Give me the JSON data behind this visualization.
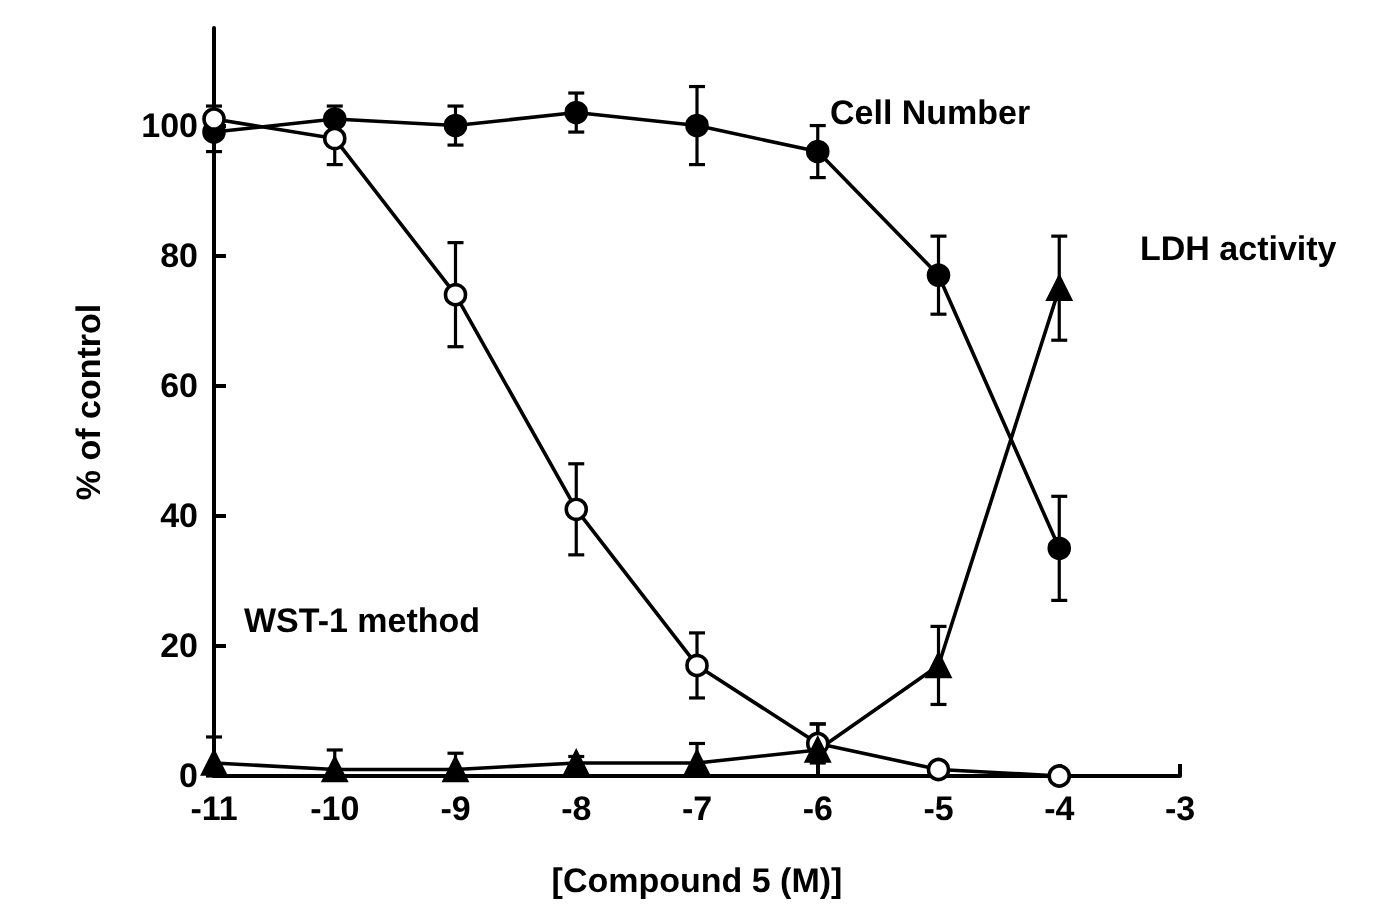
{
  "chart_data": {
    "type": "line",
    "xlabel": "[Compound 5 (M)]",
    "ylabel": "% of control",
    "x": [
      -11,
      -10,
      -9,
      -8,
      -7,
      -6,
      -5,
      -4
    ],
    "xlim": [
      -11,
      -3
    ],
    "xticks": [
      -11,
      -10,
      -9,
      -8,
      -7,
      -6,
      -5,
      -4,
      -3
    ],
    "ylim": [
      0,
      115
    ],
    "yticks": [
      0,
      20,
      40,
      60,
      80,
      100
    ],
    "grid": false,
    "line_style": "solid",
    "series": [
      {
        "color": "#000000",
        "marker": "circle",
        "values": [
          99,
          101,
          100,
          102,
          100,
          96,
          77,
          35
        ],
        "errors": [
          3,
          2,
          3,
          3,
          6,
          4,
          6,
          8
        ]
      },
      {
        "color": "#000000",
        "marker": "circle-open",
        "values": [
          101,
          98,
          74,
          41,
          17,
          5,
          1,
          0
        ],
        "errors": [
          2,
          4,
          8,
          7,
          5,
          3,
          1,
          [
            0,
            1
          ]
        ]
      },
      {
        "color": "#000000",
        "marker": "triangle",
        "values": [
          2,
          1,
          1,
          2,
          2,
          4,
          17,
          75
        ],
        "errors": [
          [
            0,
            6
          ],
          [
            1,
            4
          ],
          [
            1,
            3.5
          ],
          [
            0,
            3
          ],
          [
            0,
            5
          ],
          [
            0,
            8
          ],
          6,
          8
        ]
      }
    ],
    "annotations": [
      "Cell Number",
      "LDH activity",
      "WST-1 method"
    ]
  }
}
